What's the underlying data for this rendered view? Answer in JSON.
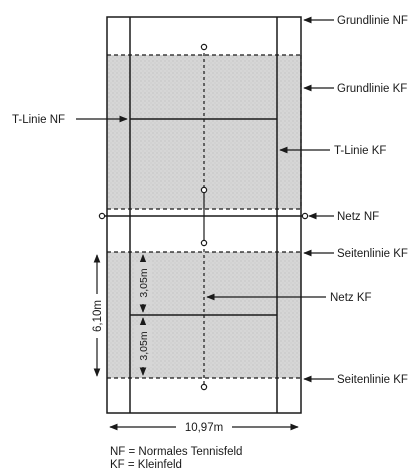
{
  "labels": {
    "grundlinie_nf": "Grundlinie NF",
    "grundlinie_kf": "Grundlinie KF",
    "t_linie_nf": "T-Linie NF",
    "t_linie_kf": "T-Linie KF",
    "netz_nf": "Netz NF",
    "seitenlinie_kf_top": "Seitenlinie KF",
    "netz_kf": "Netz KF",
    "seitenlinie_kf_bottom": "Seitenlinie KF"
  },
  "dimensions": {
    "height_total": "6,10m",
    "height_half_top": "3,05m",
    "height_half_bottom": "3,05m",
    "width": "10,97m"
  },
  "legend": {
    "nf": "NF = Normales Tennisfeld",
    "kf": "KF = Kleinfeld"
  },
  "colors": {
    "court_fill": "#d4d4d4",
    "line": "#1a1a1a"
  }
}
